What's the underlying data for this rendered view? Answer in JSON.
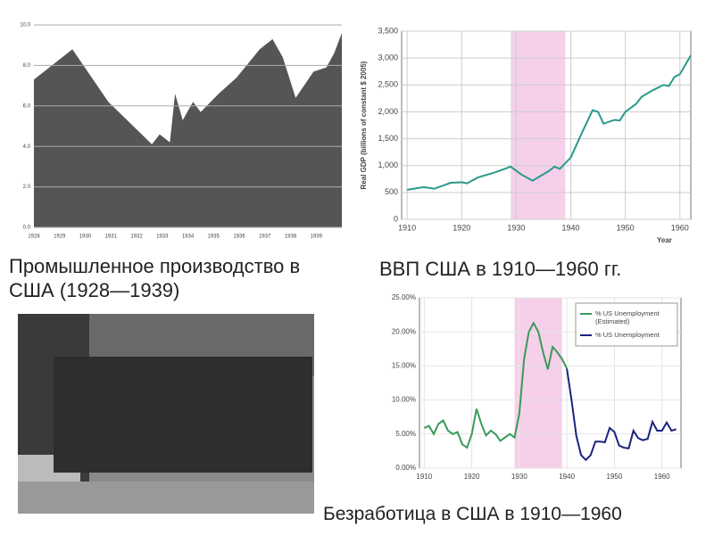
{
  "chart_data": [
    {
      "type": "area",
      "title": "Промышленное производство в США (1928—1939)",
      "x": [
        1928.0,
        1929.5,
        1930.9,
        1932.2,
        1932.6,
        1932.9,
        1933.3,
        1933.5,
        1933.8,
        1934.2,
        1934.5,
        1935.2,
        1935.9,
        1936.8,
        1937.3,
        1937.7,
        1938.2,
        1938.9,
        1939.4,
        1939.7,
        1940.0
      ],
      "series": [
        {
          "color": "#555555",
          "values": [
            7.3,
            8.8,
            6.2,
            4.6,
            4.1,
            4.6,
            4.2,
            6.6,
            5.3,
            6.2,
            5.7,
            6.6,
            7.4,
            8.8,
            9.3,
            8.4,
            6.4,
            7.7,
            7.9,
            8.6,
            9.6
          ]
        }
      ],
      "xlim": [
        1928,
        1940
      ],
      "xticks": [
        1928,
        1929,
        1930,
        1931,
        1932,
        1933,
        1934,
        1935,
        1936,
        1937,
        1938,
        1939
      ],
      "ylim": [
        0,
        10
      ],
      "yticks": [
        {
          "value": 0,
          "label": "0.0"
        },
        {
          "value": 2,
          "label": "2.0"
        },
        {
          "value": 4,
          "label": "4.0"
        },
        {
          "value": 6,
          "label": "6.0"
        },
        {
          "value": 8,
          "label": "8.0"
        },
        {
          "value": 10,
          "label": "10.0"
        }
      ],
      "grid": true
    },
    {
      "type": "line",
      "title": "ВВП США в 1910—1960 гг.",
      "y_label": "Real GDP (billions of constant $ 2005)",
      "x_label": "Year",
      "x": [
        1910,
        1913,
        1915,
        1918,
        1920,
        1921,
        1923,
        1926,
        1929,
        1931,
        1933,
        1936,
        1937,
        1938,
        1940,
        1942,
        1944,
        1945,
        1946,
        1948,
        1949,
        1950,
        1952,
        1953,
        1955,
        1957,
        1958,
        1959,
        1960,
        1962
      ],
      "series": [
        {
          "color": "#2a9a8a",
          "values": [
            550,
            600,
            570,
            680,
            690,
            670,
            780,
            870,
            980,
            830,
            720,
            900,
            980,
            940,
            1150,
            1600,
            2030,
            2000,
            1780,
            1850,
            1840,
            2000,
            2150,
            2280,
            2400,
            2500,
            2480,
            2650,
            2700,
            3050
          ]
        }
      ],
      "highlight_range": [
        1929,
        1939
      ],
      "highlight_color": "#f6d0ea",
      "xlim": [
        1909,
        1962
      ],
      "xticks": [
        1910,
        1920,
        1930,
        1940,
        1950,
        1960
      ],
      "ylim": [
        0,
        3500
      ],
      "yticks": [
        0,
        500,
        {
          "value": 1000,
          "label": "1,000"
        },
        {
          "value": 1500,
          "label": "1,500"
        },
        {
          "value": 2000,
          "label": "2,000"
        },
        {
          "value": 2500,
          "label": "2,500"
        },
        {
          "value": 3000,
          "label": "3,000"
        },
        {
          "value": 3500,
          "label": "3,500"
        }
      ],
      "grid": true
    },
    {
      "type": "line",
      "title": "Безработица в США в 1910—1960",
      "x": [
        1910,
        1911,
        1912,
        1913,
        1914,
        1915,
        1916,
        1917,
        1918,
        1919,
        1920,
        1921,
        1922,
        1923,
        1924,
        1925,
        1926,
        1927,
        1928,
        1929,
        1930,
        1931,
        1932,
        1933,
        1934,
        1935,
        1936,
        1937,
        1938,
        1939,
        1940,
        1941,
        1942,
        1943,
        1944,
        1945,
        1946,
        1947,
        1948,
        1949,
        1950,
        1951,
        1952,
        1953,
        1954,
        1955,
        1956,
        1957,
        1958,
        1959,
        1960,
        1961,
        1962,
        1963
      ],
      "series": [
        {
          "name": "% US Unemployment (Estimated)",
          "color": "#3a9a5a",
          "values": [
            5.9,
            6.2,
            5,
            6.5,
            7,
            5.5,
            5,
            5.3,
            3.5,
            3,
            5,
            8.7,
            6.5,
            4.8,
            5.5,
            5,
            4,
            4.5,
            5,
            4.5,
            8,
            16,
            20,
            21.3,
            20,
            17,
            14.5,
            17.8,
            17,
            16,
            14.6,
            null,
            null,
            null,
            null,
            null,
            null,
            null,
            null,
            null,
            null,
            null,
            null,
            null,
            null,
            null,
            null,
            null,
            null,
            null,
            null,
            null,
            null,
            null
          ]
        },
        {
          "name": "% US Unemployment",
          "color": "#1a237e",
          "values": [
            null,
            null,
            null,
            null,
            null,
            null,
            null,
            null,
            null,
            null,
            null,
            null,
            null,
            null,
            null,
            null,
            null,
            null,
            null,
            null,
            null,
            null,
            null,
            null,
            null,
            null,
            null,
            null,
            null,
            null,
            14.6,
            9.9,
            4.7,
            1.9,
            1.2,
            1.9,
            3.9,
            3.9,
            3.8,
            5.9,
            5.3,
            3.3,
            3,
            2.9,
            5.5,
            4.4,
            4.1,
            4.3,
            6.8,
            5.5,
            5.5,
            6.7,
            5.5,
            5.7
          ]
        }
      ],
      "highlight_range": [
        1929,
        1939
      ],
      "highlight_color": "#f6d0ea",
      "xlim": [
        1909,
        1964
      ],
      "xticks": [
        1910,
        1920,
        1930,
        1940,
        1950,
        1960
      ],
      "ylim": [
        0,
        25
      ],
      "yticks": [
        {
          "value": 0,
          "label": "0.00%"
        },
        {
          "value": 5,
          "label": "5.00%"
        },
        {
          "value": 10,
          "label": "10.00%"
        },
        {
          "value": 15,
          "label": "15.00%"
        },
        {
          "value": 20,
          "label": "20.00%"
        },
        {
          "value": 25,
          "label": "25.00%"
        }
      ],
      "grid": true,
      "legend": "top-right"
    }
  ]
}
